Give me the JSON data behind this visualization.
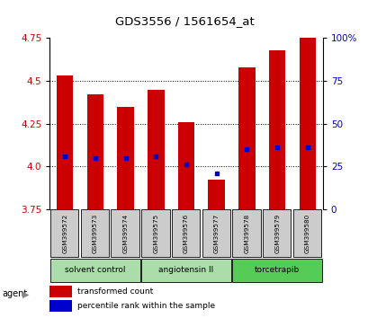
{
  "title": "GDS3556 / 1561654_at",
  "samples": [
    "GSM399572",
    "GSM399573",
    "GSM399574",
    "GSM399575",
    "GSM399576",
    "GSM399577",
    "GSM399578",
    "GSM399579",
    "GSM399580"
  ],
  "bar_tops": [
    4.53,
    4.42,
    4.35,
    4.45,
    4.26,
    3.92,
    4.58,
    4.68,
    4.75
  ],
  "bar_bottom": 3.75,
  "percentile_values": [
    4.06,
    4.05,
    4.05,
    4.06,
    4.01,
    3.96,
    4.1,
    4.11,
    4.11
  ],
  "ylim": [
    3.75,
    4.75
  ],
  "yticks_left": [
    3.75,
    4.0,
    4.25,
    4.5,
    4.75
  ],
  "yticks_right": [
    0,
    25,
    50,
    75,
    100
  ],
  "bar_color": "#cc0000",
  "percentile_color": "#0000cc",
  "bar_width": 0.55,
  "group_configs": [
    [
      0,
      2,
      "solvent control",
      "#aaddaa"
    ],
    [
      3,
      5,
      "angiotensin II",
      "#aaddaa"
    ],
    [
      6,
      8,
      "torcetrapib",
      "#55cc55"
    ]
  ],
  "agent_label": "agent",
  "legend_red": "transformed count",
  "legend_blue": "percentile rank within the sample",
  "xlabel_color": "#cc0000",
  "ylabel_right_color": "#0000cc",
  "sample_box_color": "#cccccc",
  "grid_yticks": [
    4.0,
    4.25,
    4.5
  ]
}
